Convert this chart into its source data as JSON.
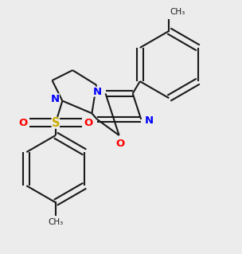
{
  "bg": "#ececec",
  "bc": "#1a1a1a",
  "nc": "#0000ff",
  "oc": "#ff0000",
  "sc": "#ccaa00",
  "lw": 1.5,
  "fs": 9.5,
  "fs_small": 7.5
}
